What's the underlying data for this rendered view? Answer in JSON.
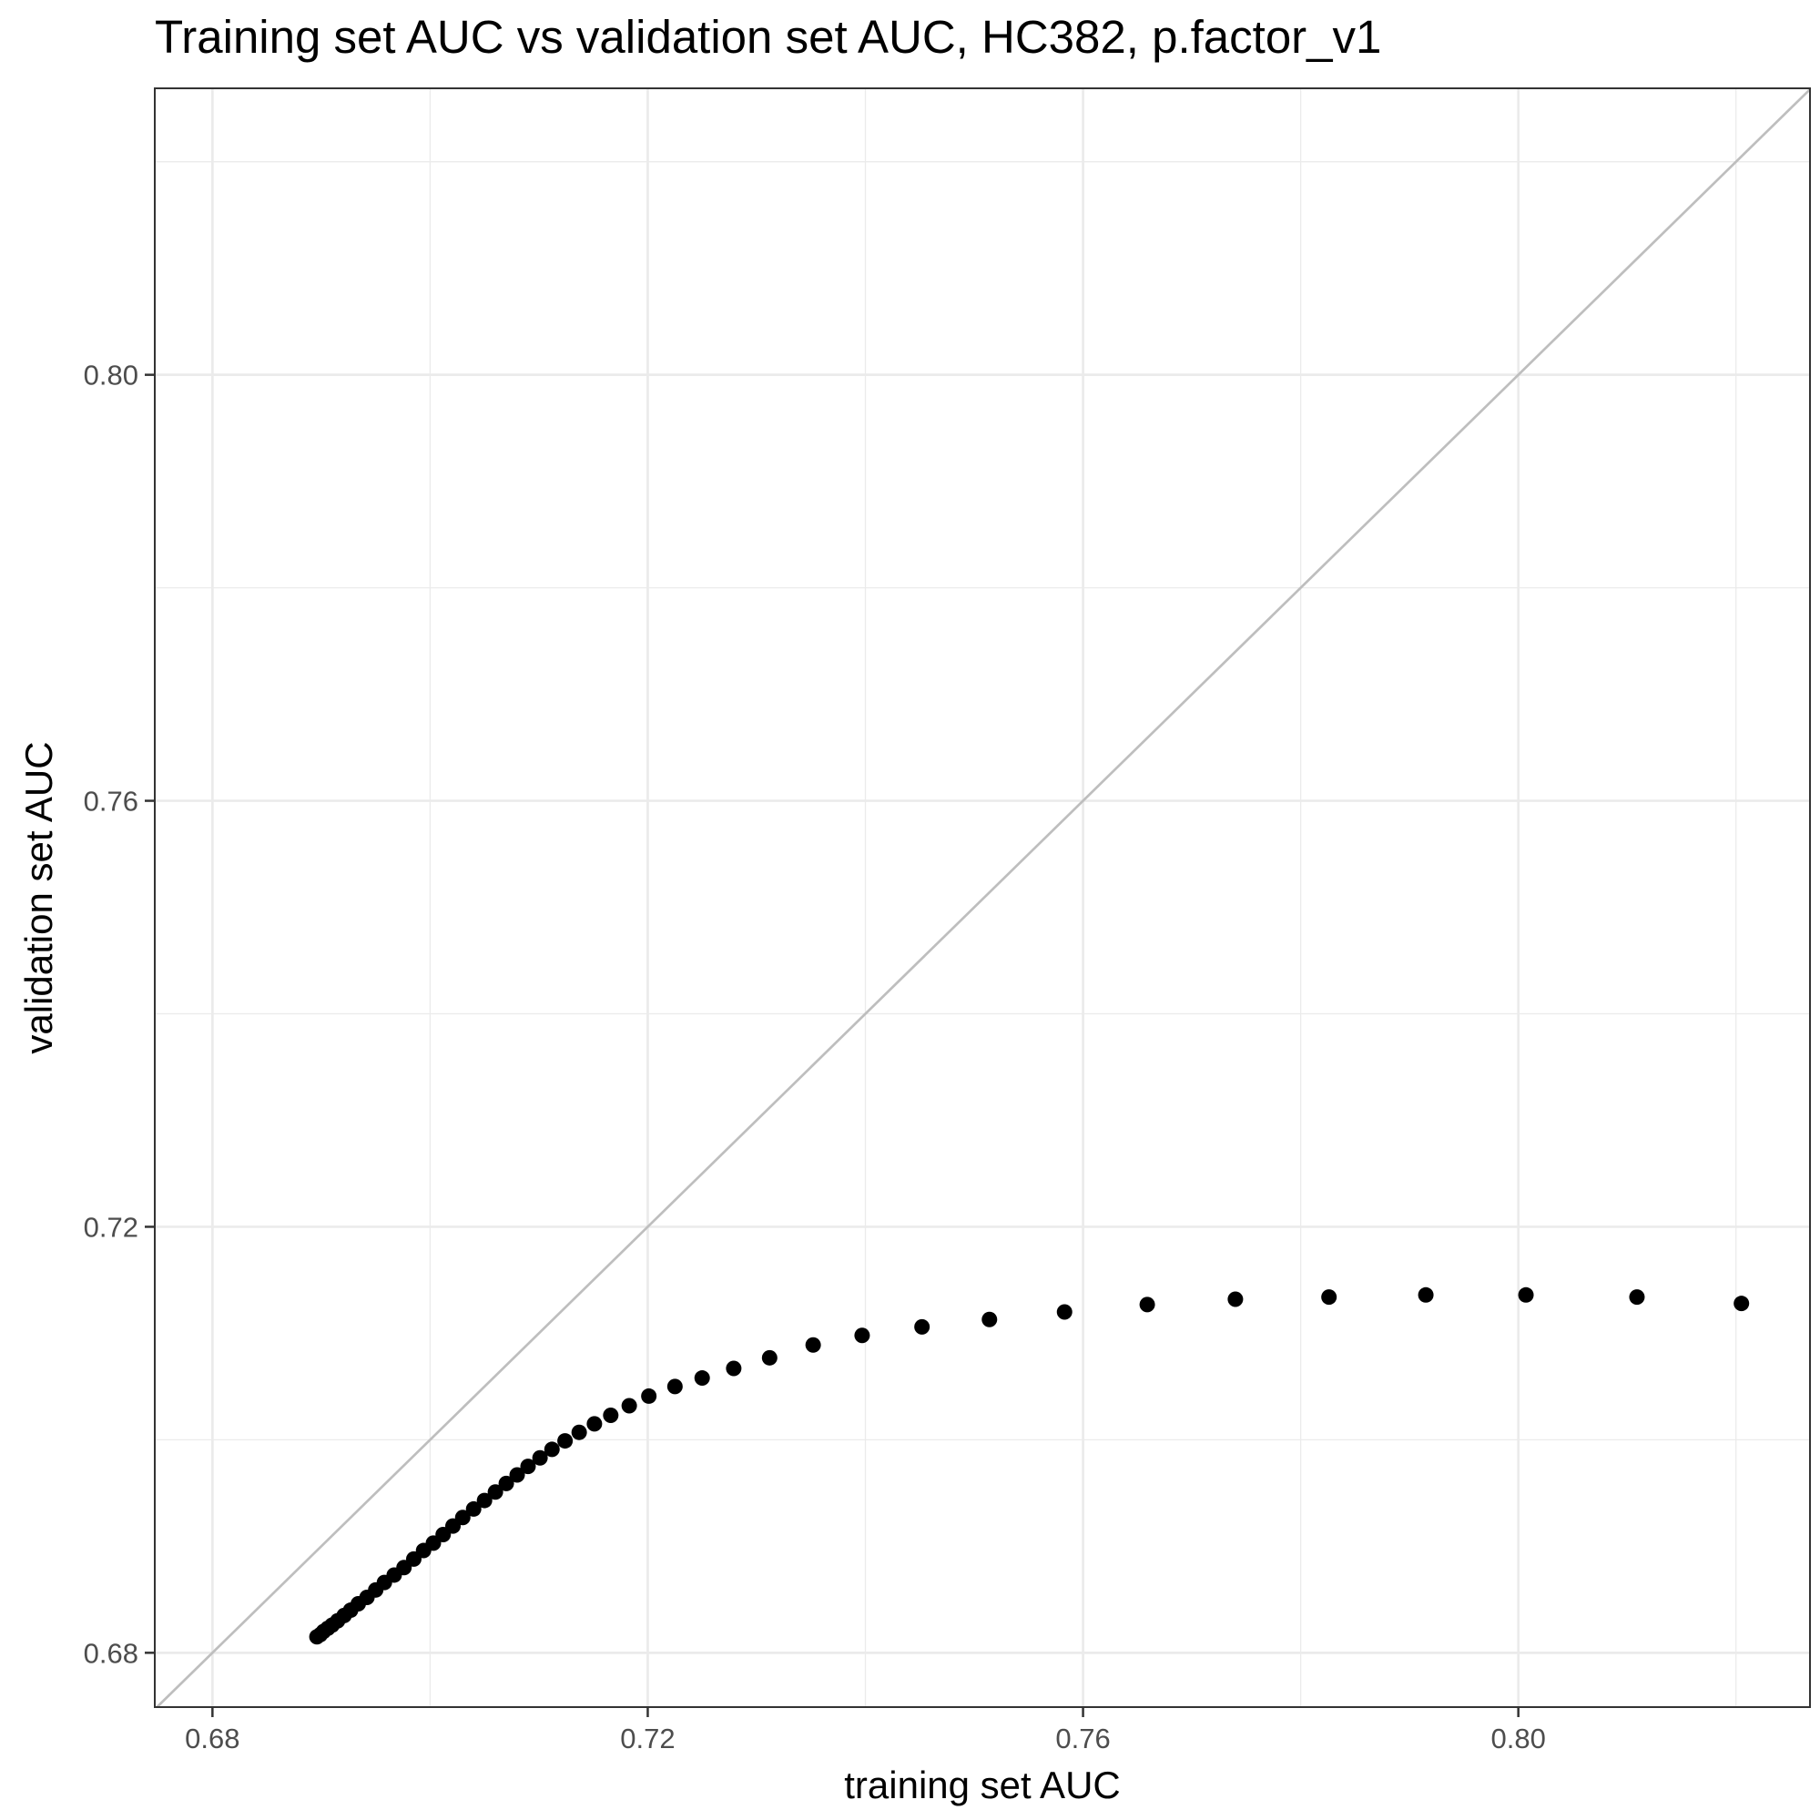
{
  "chart_data": {
    "type": "scatter",
    "title": "Training set AUC vs validation set AUC, HC382, p.factor_v1",
    "xlabel": "training set AUC",
    "ylabel": "validation set AUC",
    "xlim": [
      0.6747,
      0.8268
    ],
    "ylim": [
      0.6749,
      0.8269
    ],
    "x_ticks": [
      0.68,
      0.72,
      0.76,
      0.8
    ],
    "x_tick_labels": [
      "0.68",
      "0.72",
      "0.76",
      "0.80"
    ],
    "y_ticks": [
      0.68,
      0.72,
      0.76,
      0.8
    ],
    "y_tick_labels": [
      "0.68",
      "0.72",
      "0.76",
      "0.80"
    ],
    "x_minor_ticks": [
      0.7,
      0.74,
      0.78,
      0.82
    ],
    "y_minor_ticks": [
      0.7,
      0.74,
      0.78,
      0.82
    ],
    "grid": true,
    "reference_line": "y = x",
    "colors": {
      "points": "#000000",
      "reference_line": "#bebebe",
      "grid": "#ebebeb",
      "panel_border": "#333333"
    },
    "points": [
      [
        0.6896,
        0.6815
      ],
      [
        0.6899,
        0.6817
      ],
      [
        0.6902,
        0.682
      ],
      [
        0.6906,
        0.6823
      ],
      [
        0.691,
        0.6826
      ],
      [
        0.6915,
        0.683
      ],
      [
        0.6921,
        0.6835
      ],
      [
        0.6927,
        0.684
      ],
      [
        0.6934,
        0.6846
      ],
      [
        0.6942,
        0.6852
      ],
      [
        0.695,
        0.6859
      ],
      [
        0.6958,
        0.6866
      ],
      [
        0.6967,
        0.6873
      ],
      [
        0.6976,
        0.688
      ],
      [
        0.6985,
        0.6888
      ],
      [
        0.6994,
        0.6896
      ],
      [
        0.7003,
        0.6903
      ],
      [
        0.7012,
        0.6911
      ],
      [
        0.7021,
        0.6919
      ],
      [
        0.703,
        0.6927
      ],
      [
        0.704,
        0.6935
      ],
      [
        0.705,
        0.6943
      ],
      [
        0.706,
        0.6951
      ],
      [
        0.707,
        0.6959
      ],
      [
        0.708,
        0.6967
      ],
      [
        0.709,
        0.6975
      ],
      [
        0.7101,
        0.6983
      ],
      [
        0.7112,
        0.6991
      ],
      [
        0.7124,
        0.6999
      ],
      [
        0.7137,
        0.7007
      ],
      [
        0.7151,
        0.7015
      ],
      [
        0.7166,
        0.7023
      ],
      [
        0.7183,
        0.7032
      ],
      [
        0.7201,
        0.7041
      ],
      [
        0.7225,
        0.705
      ],
      [
        0.725,
        0.7058
      ],
      [
        0.7279,
        0.7067
      ],
      [
        0.7312,
        0.7077
      ],
      [
        0.7352,
        0.7089
      ],
      [
        0.7397,
        0.7098
      ],
      [
        0.7452,
        0.7106
      ],
      [
        0.7514,
        0.7113
      ],
      [
        0.7583,
        0.712
      ],
      [
        0.7659,
        0.7127
      ],
      [
        0.774,
        0.7132
      ],
      [
        0.7826,
        0.7134
      ],
      [
        0.7915,
        0.7136
      ],
      [
        0.8007,
        0.7136
      ],
      [
        0.8109,
        0.7134
      ],
      [
        0.8205,
        0.7128
      ]
    ]
  }
}
